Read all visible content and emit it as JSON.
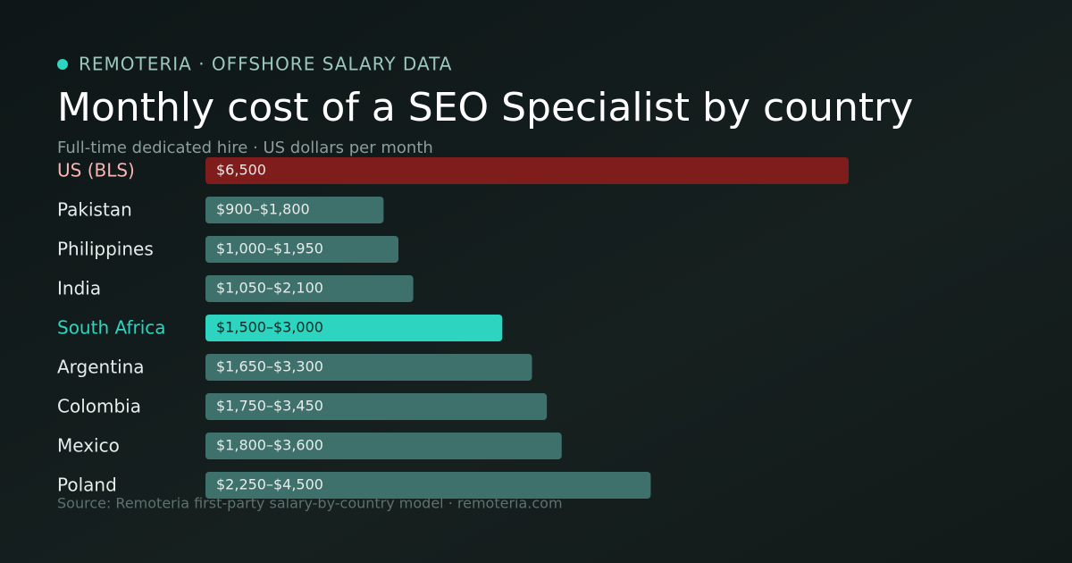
{
  "brand": "REMOTERIA · OFFSHORE SALARY DATA",
  "chart_data": {
    "type": "bar",
    "orientation": "horizontal",
    "title": "Monthly cost of a SEO Specialist by country",
    "subtitle": "Full-time dedicated hire · US dollars per month",
    "source": "Source: Remoteria first-party salary-by-country model · remoteria.com",
    "categories": [
      "US (BLS)",
      "Pakistan",
      "Philippines",
      "India",
      "South Africa",
      "Argentina",
      "Colombia",
      "Mexico",
      "Poland"
    ],
    "values": [
      6500,
      1800,
      1950,
      2100,
      3000,
      3300,
      3450,
      3600,
      4500
    ],
    "value_labels": [
      "$6,500",
      "$900–$1,800",
      "$1,000–$1,950",
      "$1,050–$2,100",
      "$1,500–$3,000",
      "$1,650–$3,300",
      "$1,750–$3,450",
      "$1,800–$3,600",
      "$2,250–$4,500"
    ],
    "colors": [
      "#7f1d1d",
      "#3f716c",
      "#3f716c",
      "#3f716c",
      "#2dd4bf",
      "#3f716c",
      "#3f716c",
      "#3f716c",
      "#3f716c"
    ],
    "category_colors": [
      "#f9b4b4",
      "#e6ecea",
      "#e6ecea",
      "#e6ecea",
      "#2dd4bf",
      "#e6ecea",
      "#e6ecea",
      "#e6ecea",
      "#e6ecea"
    ],
    "value_label_colors": [
      "#f1e4e4",
      "#e6ecea",
      "#e6ecea",
      "#e6ecea",
      "#0c2522",
      "#e6ecea",
      "#e6ecea",
      "#e6ecea",
      "#e6ecea"
    ]
  }
}
